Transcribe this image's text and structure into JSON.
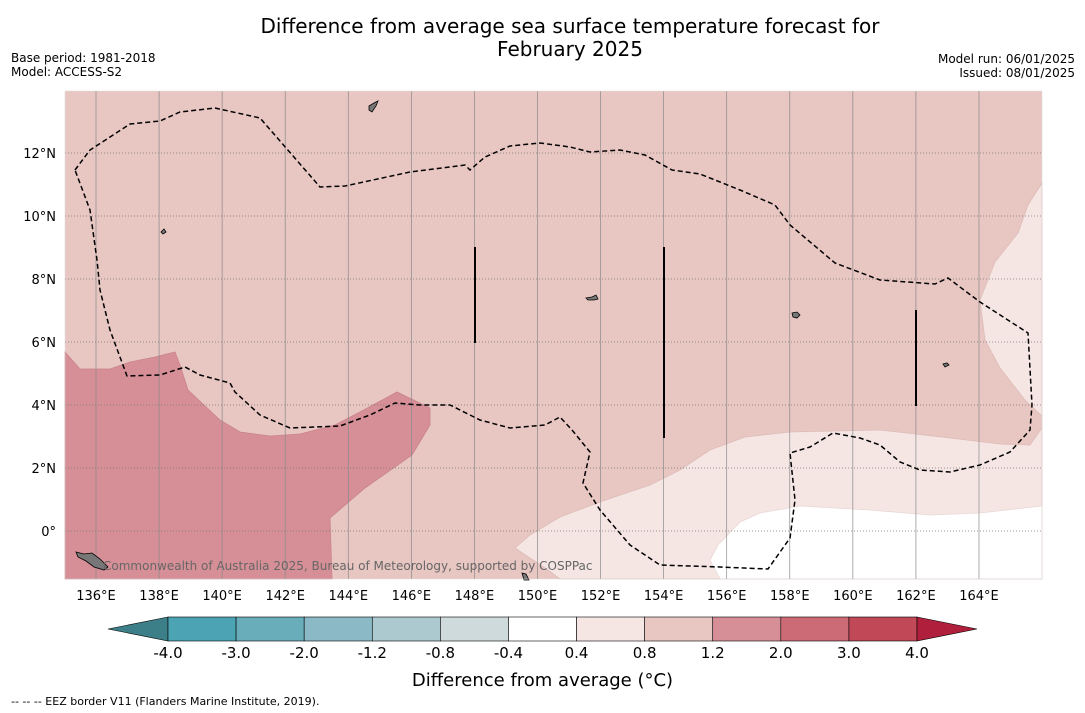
{
  "title_line1": "Difference from average sea surface temperature forecast for",
  "title_line2": "February 2025",
  "base_period": "Base period: 1981-2018",
  "model": "Model: ACCESS-S2",
  "model_run": "Model run: 06/01/2025",
  "issued": "Issued: 08/01/2025",
  "copyright": "Commonwealth of Australia 2025, Bureau of Meteorology, supported by COSPPac",
  "lon_labels": [
    "136°E",
    "138°E",
    "140°E",
    "142°E",
    "144°E",
    "146°E",
    "148°E",
    "150°E",
    "152°E",
    "154°E",
    "156°E",
    "158°E",
    "160°E",
    "162°E",
    "164°E"
  ],
  "lat_labels": [
    "12°N",
    "10°N",
    "8°N",
    "6°N",
    "4°N",
    "2°N",
    "0°"
  ],
  "colorbar": {
    "label": "Difference from average (°C)",
    "ticks": [
      "-4.0",
      "-3.0",
      "-2.0",
      "-1.2",
      "-0.8",
      "-0.4",
      "0.4",
      "0.8",
      "1.2",
      "2.0",
      "3.0",
      "4.0"
    ],
    "colors": [
      "#3d7f88",
      "#4ba3b4",
      "#69adbb",
      "#8bbac6",
      "#abc9ce",
      "#cfdadc",
      "#ffffff",
      "#f5e6e4",
      "#e8c6c2",
      "#d68f96",
      "#cc6a75",
      "#c04857",
      "#b01f3c"
    ]
  },
  "legend_note": "--  --  -- EEZ border V11 (Flanders Marine Institute, 2019)."
}
